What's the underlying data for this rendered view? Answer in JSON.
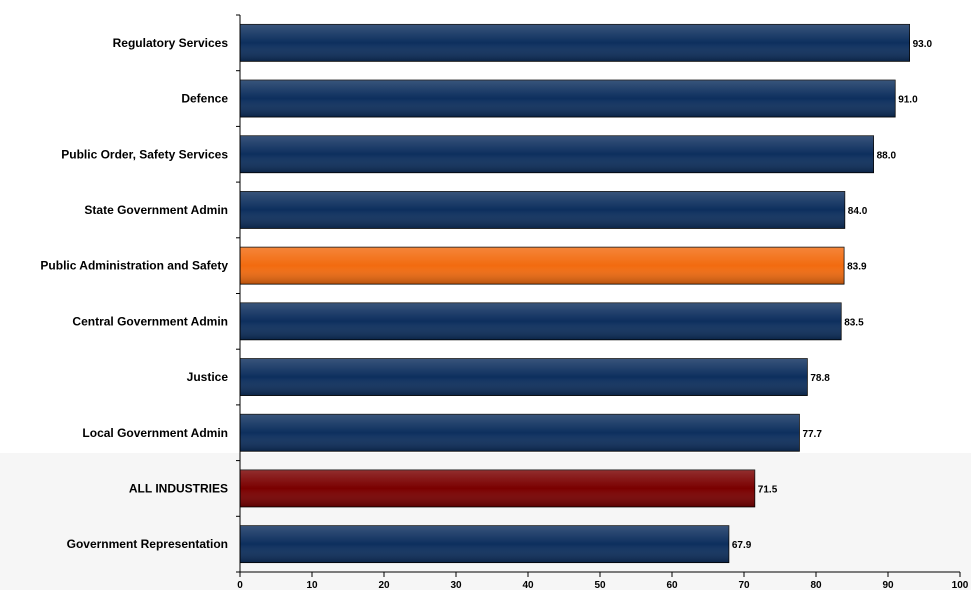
{
  "chart_data": {
    "type": "bar",
    "orientation": "horizontal",
    "categories": [
      "Regulatory Services",
      "Defence",
      "Public Order, Safety Services",
      "State Government Admin",
      "Public Administration and Safety",
      "Central Government Admin",
      "Justice",
      "Local Government Admin",
      "ALL INDUSTRIES",
      "Government Representation"
    ],
    "values": [
      93.0,
      91.0,
      88.0,
      84.0,
      83.9,
      83.5,
      78.8,
      77.7,
      71.5,
      67.9
    ],
    "value_labels": [
      "93.0",
      "91.0",
      "88.0",
      "84.0",
      "83.9",
      "83.5",
      "78.8",
      "77.7",
      "71.5",
      "67.9"
    ],
    "bar_colors": [
      "#0d2f5e",
      "#0d2f5e",
      "#0d2f5e",
      "#0d2f5e",
      "#f26b0f",
      "#0d2f5e",
      "#0d2f5e",
      "#0d2f5e",
      "#7a0000",
      "#0d2f5e"
    ],
    "xlim": [
      0,
      100
    ],
    "xticks": [
      0,
      10,
      20,
      30,
      40,
      50,
      60,
      70,
      80,
      90,
      100
    ],
    "grid": false,
    "title": "",
    "xlabel": "",
    "ylabel": ""
  }
}
